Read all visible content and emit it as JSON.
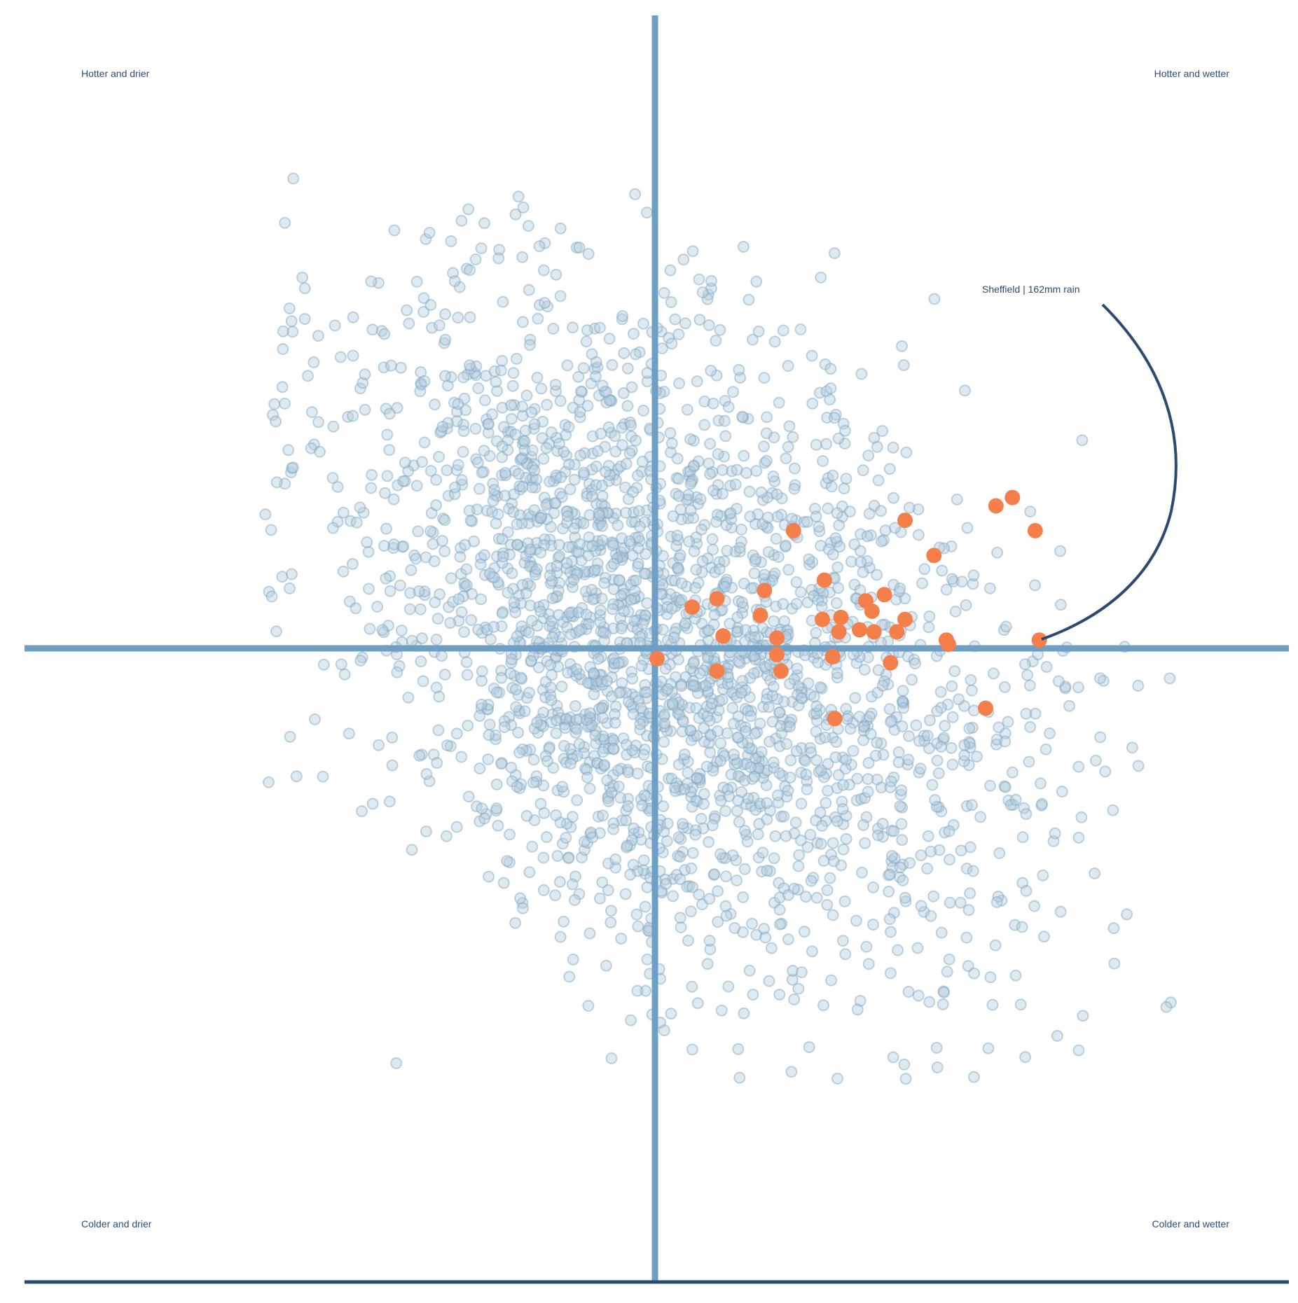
{
  "colors": {
    "axis": "#6f9fc4",
    "bottom_rule": "#2b4a6f",
    "background_point_fill": "#b9cfde",
    "background_point_stroke": "#7aa5c2",
    "highlight_point": "#f47f4b",
    "quadrant_label": "#2a4f7c",
    "annotation": "#2b4a6f"
  },
  "quadrant_labels": {
    "top_left": "Hotter and drier",
    "top_right": "Hotter and wetter",
    "bottom_left": "Colder and drier",
    "bottom_right": "Colder and wetter"
  },
  "annotation": {
    "label": "Sheffield | 162mm rain"
  },
  "chart_data": {
    "type": "scatter",
    "title": "",
    "xlabel": "",
    "ylabel": "",
    "xlim": [
      -3.05,
      3.05
    ],
    "ylim": [
      -3.05,
      3.05
    ],
    "grid": false,
    "background_points": {
      "count": 2600,
      "note": "dense cloud of translucent circles centred slightly right of origin"
    },
    "highlight_series": {
      "values": [
        [
          0.67,
          0.57
        ],
        [
          1.21,
          0.62
        ],
        [
          1.35,
          0.45
        ],
        [
          1.65,
          0.69
        ],
        [
          1.73,
          0.73
        ],
        [
          1.84,
          0.57
        ],
        [
          0.53,
          0.28
        ],
        [
          0.82,
          0.33
        ],
        [
          1.02,
          0.23
        ],
        [
          1.11,
          0.26
        ],
        [
          1.05,
          0.18
        ],
        [
          0.3,
          0.24
        ],
        [
          0.18,
          0.2
        ],
        [
          0.51,
          0.16
        ],
        [
          0.81,
          0.14
        ],
        [
          0.9,
          0.15
        ],
        [
          1.21,
          0.14
        ],
        [
          0.89,
          0.08
        ],
        [
          0.99,
          0.09
        ],
        [
          1.06,
          0.08
        ],
        [
          1.17,
          0.08
        ],
        [
          0.33,
          0.06
        ],
        [
          0.59,
          0.05
        ],
        [
          1.41,
          0.04
        ],
        [
          1.42,
          0.02
        ],
        [
          1.86,
          0.04
        ],
        [
          0.01,
          -0.05
        ],
        [
          0.59,
          -0.03
        ],
        [
          0.86,
          -0.04
        ],
        [
          1.14,
          -0.07
        ],
        [
          0.3,
          -0.11
        ],
        [
          0.61,
          -0.11
        ],
        [
          1.6,
          -0.29
        ],
        [
          0.87,
          -0.34
        ]
      ]
    }
  }
}
